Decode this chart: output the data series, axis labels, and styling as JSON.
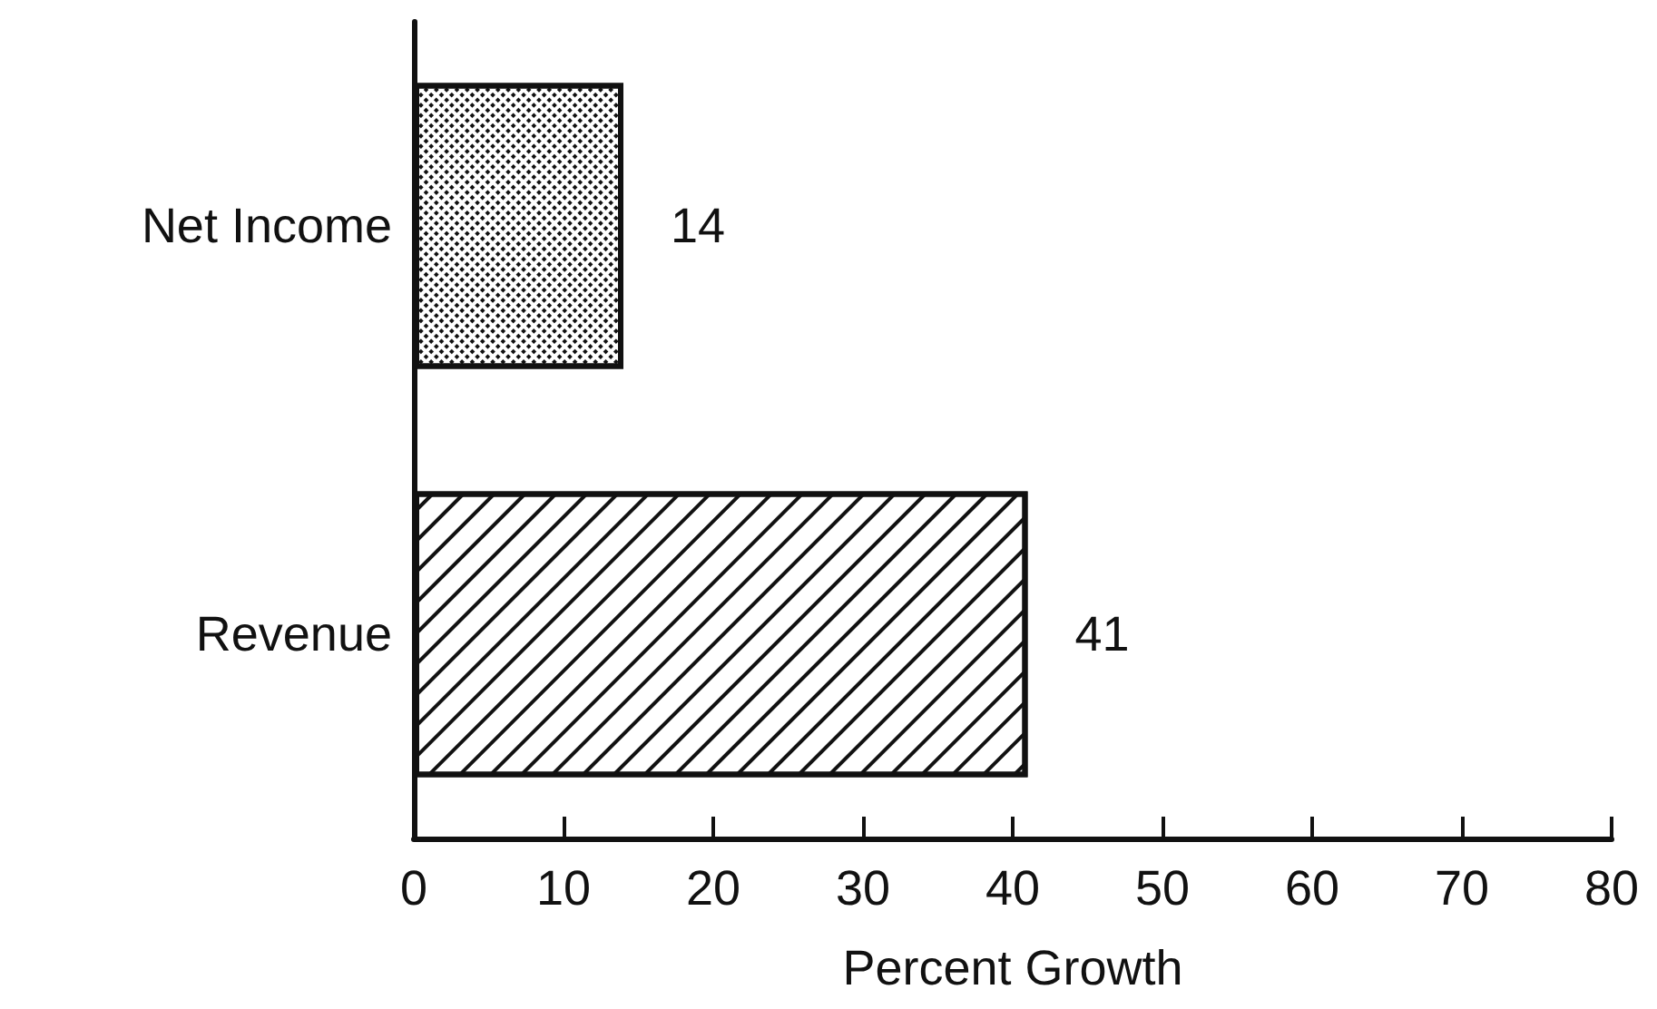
{
  "chart_data": {
    "type": "bar",
    "orientation": "horizontal",
    "xlabel": "Percent Growth",
    "categories": [
      "Net Income",
      "Revenue"
    ],
    "values": [
      14,
      41
    ],
    "colors": [
      "#ffffff",
      "#ffffff"
    ],
    "xlim": [
      0,
      80
    ],
    "xticks": [
      0,
      10,
      20,
      30,
      40,
      50,
      60,
      70,
      80
    ],
    "data_labels": true
  }
}
